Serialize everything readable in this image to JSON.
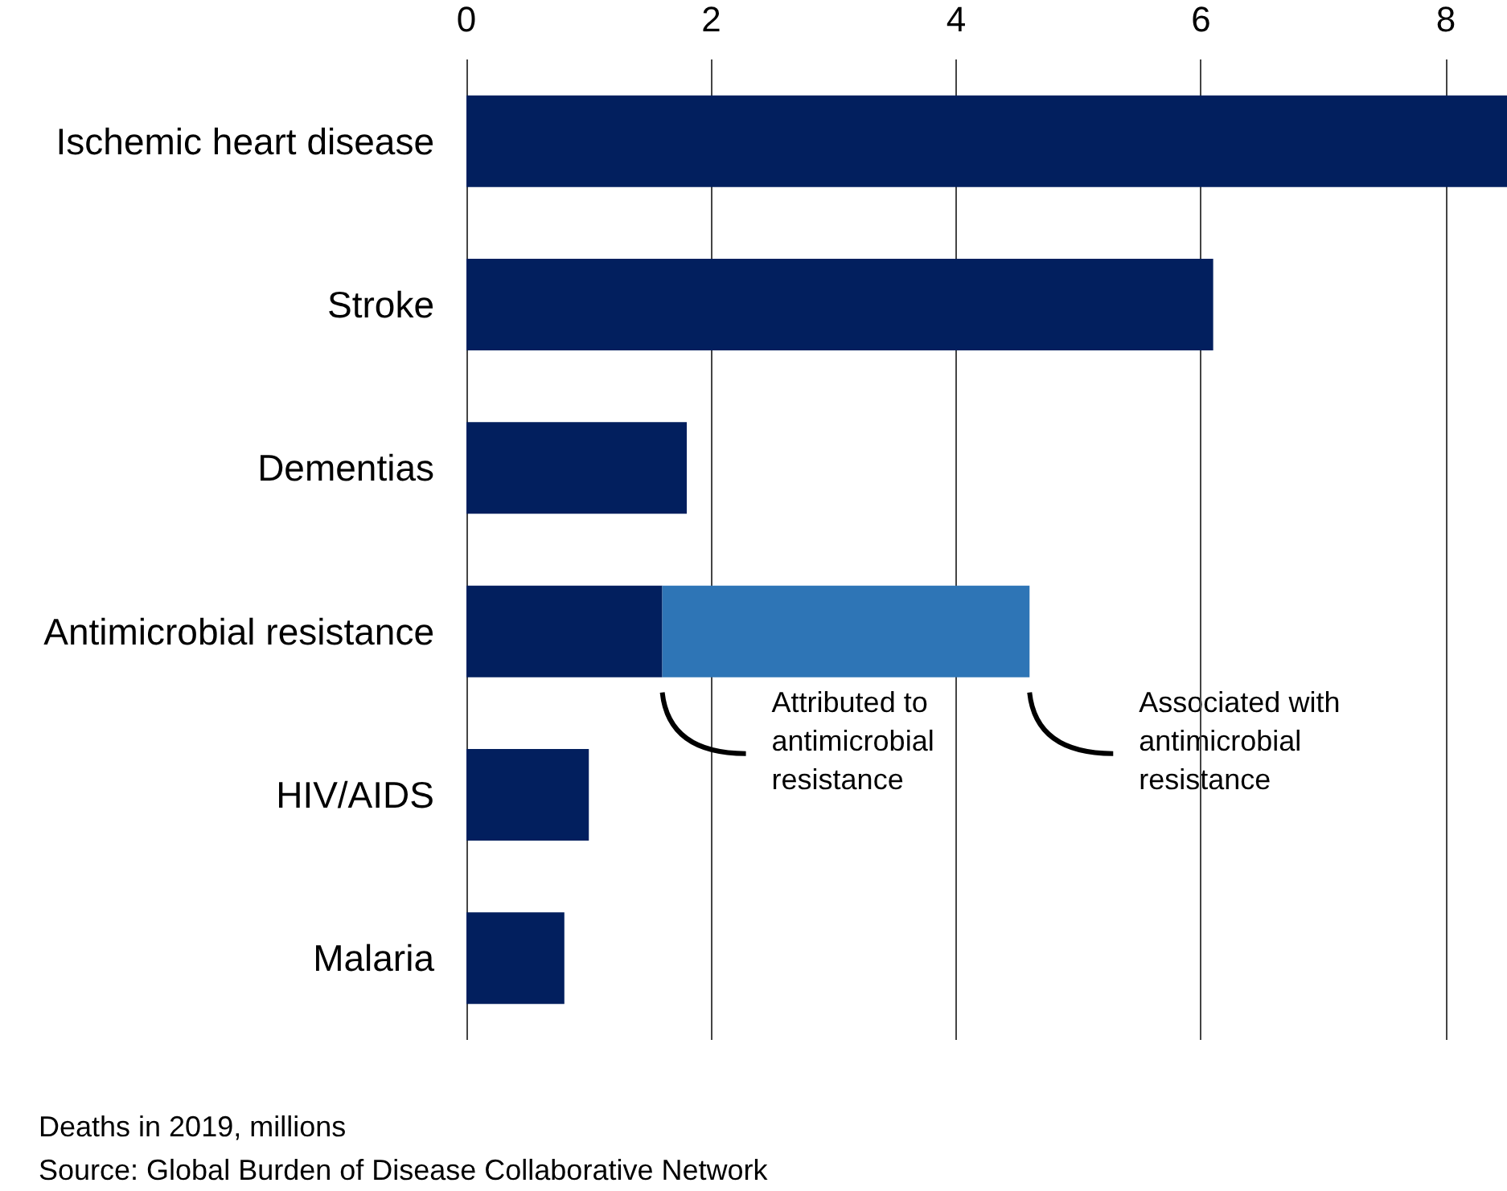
{
  "chart_data": {
    "type": "bar",
    "orientation": "horizontal",
    "stacked": true,
    "categories": [
      "Ischemic heart disease",
      "Stroke",
      "Dementias",
      "Antimicrobial resistance",
      "HIV/AIDS",
      "Malaria"
    ],
    "series": [
      {
        "color": "#021f5e",
        "values": [
          8.5,
          6.1,
          1.8,
          1.6,
          1.0,
          0.8
        ]
      },
      {
        "color": "#2e75b6",
        "values": [
          null,
          null,
          null,
          3.0,
          null,
          null
        ]
      }
    ],
    "xlim": [
      0,
      8.5
    ],
    "xticks": [
      0,
      2,
      4,
      6,
      8
    ],
    "grid": "x",
    "annotations": [
      "Attributed to antimicrobial resistance",
      "Associated with antimicrobial resistance",
      "Deaths in 2019, millions",
      "Source: Global Burden of Disease Collaborative Network"
    ]
  }
}
